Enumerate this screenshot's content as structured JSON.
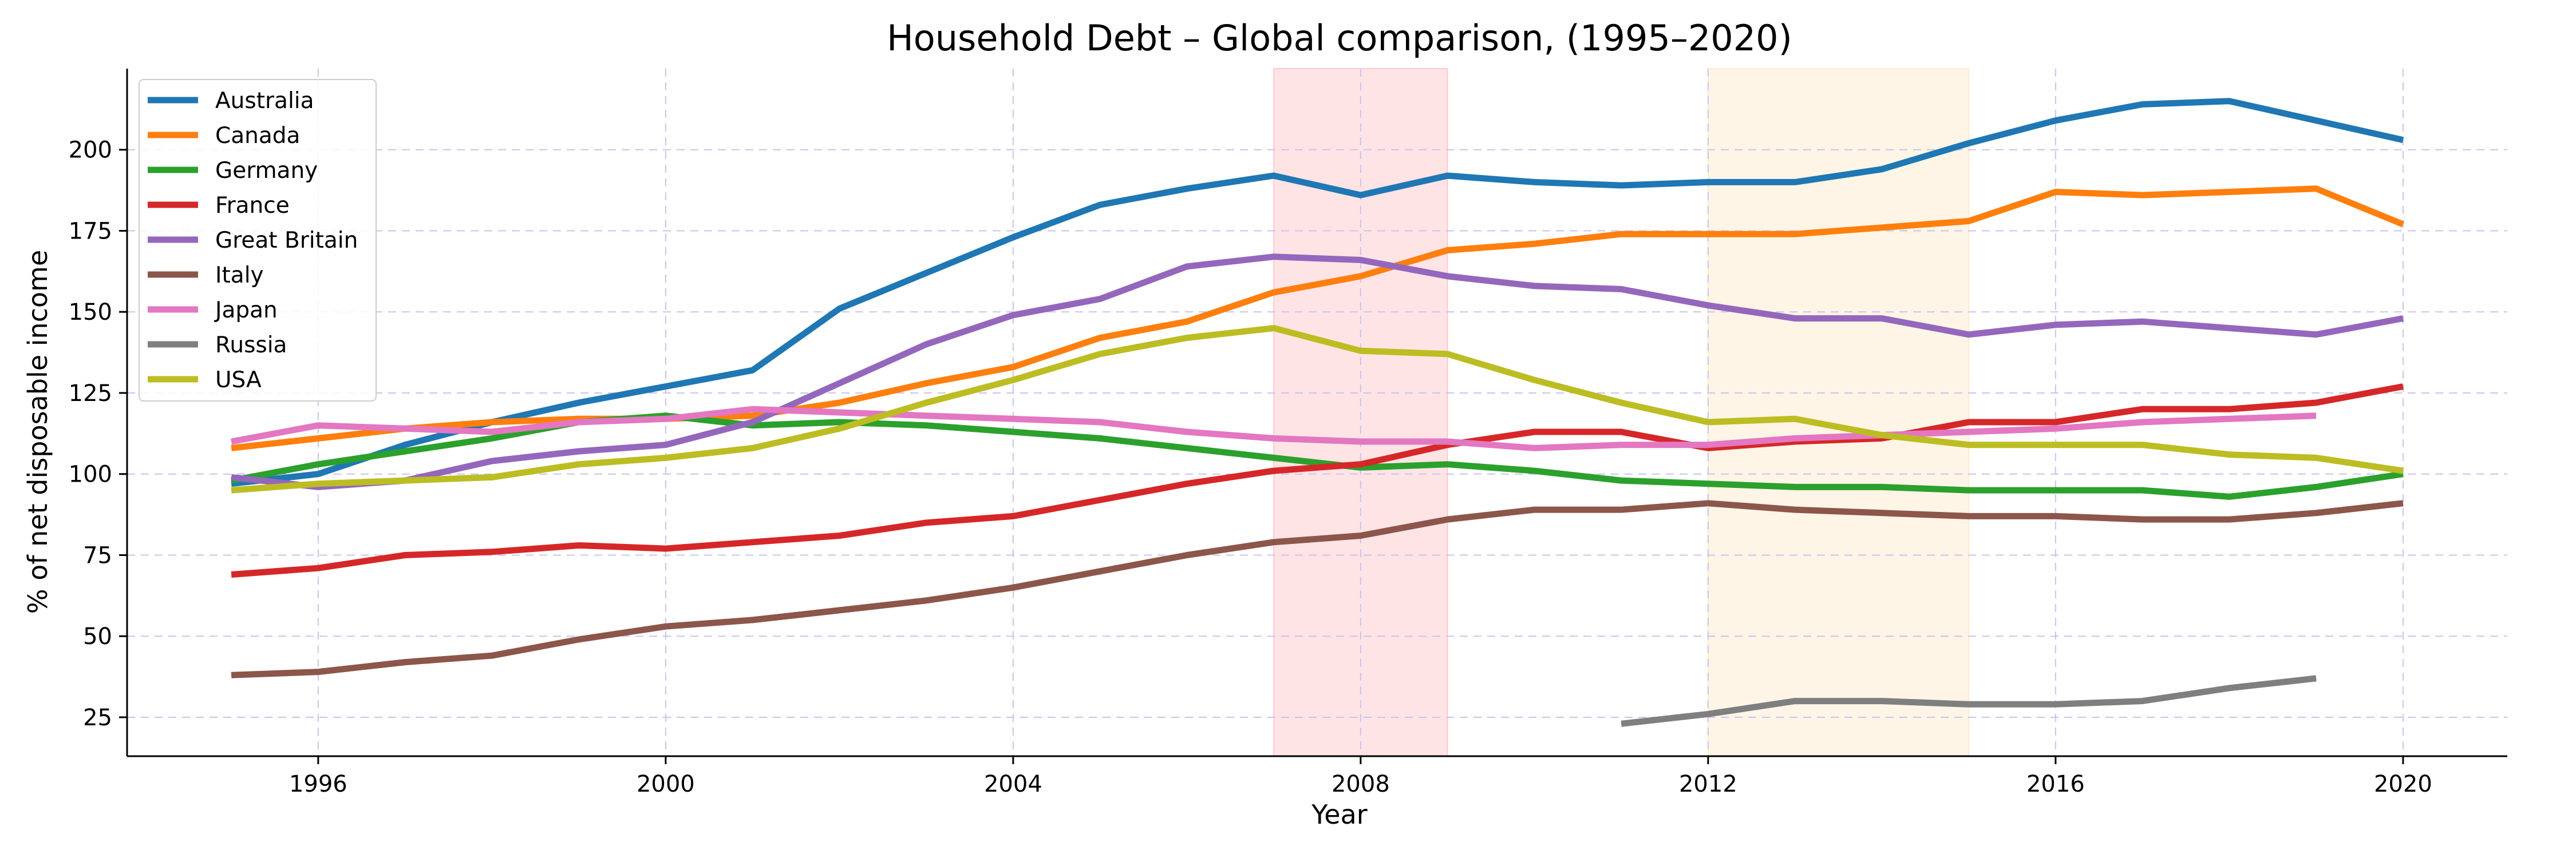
{
  "chart_data": {
    "type": "line",
    "title": "Household Debt – Global comparison, (1995–2020)",
    "xlabel": "Year",
    "ylabel": "% of net disposable income",
    "xlim": [
      1993.8,
      2021.2
    ],
    "ylim": [
      13,
      225
    ],
    "xticks": [
      1996,
      2000,
      2004,
      2008,
      2012,
      2016,
      2020
    ],
    "yticks": [
      25,
      50,
      75,
      100,
      125,
      150,
      175,
      200
    ],
    "grid": true,
    "legend_position": "top-left",
    "shaded_regions": [
      {
        "x_start": 2007,
        "x_end": 2009,
        "color": "#ffb3b8"
      },
      {
        "x_start": 2012,
        "x_end": 2015,
        "color": "#fde3b8"
      }
    ],
    "series": [
      {
        "name": "Australia",
        "color": "#1f77b4",
        "x": [
          1995,
          1996,
          1997,
          1998,
          1999,
          2000,
          2001,
          2002,
          2003,
          2004,
          2005,
          2006,
          2007,
          2008,
          2009,
          2010,
          2011,
          2012,
          2013,
          2014,
          2015,
          2016,
          2017,
          2018,
          2019,
          2020
        ],
        "y": [
          97,
          100,
          109,
          116,
          122,
          127,
          132,
          151,
          162,
          173,
          183,
          188,
          192,
          186,
          192,
          190,
          189,
          190,
          190,
          194,
          202,
          209,
          214,
          215,
          209,
          203
        ]
      },
      {
        "name": "Canada",
        "color": "#ff7f0e",
        "x": [
          1995,
          1996,
          1997,
          1998,
          1999,
          2000,
          2001,
          2002,
          2003,
          2004,
          2005,
          2006,
          2007,
          2008,
          2009,
          2010,
          2011,
          2012,
          2013,
          2014,
          2015,
          2016,
          2017,
          2018,
          2019,
          2020
        ],
        "y": [
          108,
          111,
          114,
          116,
          117,
          117,
          118,
          122,
          128,
          133,
          142,
          147,
          156,
          161,
          169,
          171,
          174,
          174,
          174,
          176,
          178,
          187,
          186,
          187,
          188,
          177
        ]
      },
      {
        "name": "Germany",
        "color": "#2ca02c",
        "x": [
          1995,
          1996,
          1997,
          1998,
          1999,
          2000,
          2001,
          2002,
          2003,
          2004,
          2005,
          2006,
          2007,
          2008,
          2009,
          2010,
          2011,
          2012,
          2013,
          2014,
          2015,
          2016,
          2017,
          2018,
          2019,
          2020
        ],
        "y": [
          98,
          103,
          107,
          111,
          116,
          118,
          115,
          116,
          115,
          113,
          111,
          108,
          105,
          102,
          103,
          101,
          98,
          97,
          96,
          96,
          95,
          95,
          95,
          93,
          96,
          100
        ]
      },
      {
        "name": "France",
        "color": "#d62728",
        "x": [
          1995,
          1996,
          1997,
          1998,
          1999,
          2000,
          2001,
          2002,
          2003,
          2004,
          2005,
          2006,
          2007,
          2008,
          2009,
          2010,
          2011,
          2012,
          2013,
          2014,
          2015,
          2016,
          2017,
          2018,
          2019,
          2020
        ],
        "y": [
          69,
          71,
          75,
          76,
          78,
          77,
          79,
          81,
          85,
          87,
          92,
          97,
          101,
          103,
          109,
          113,
          113,
          108,
          110,
          111,
          116,
          116,
          120,
          120,
          122,
          127
        ]
      },
      {
        "name": "Great Britain",
        "color": "#9467bd",
        "x": [
          1995,
          1996,
          1997,
          1998,
          1999,
          2000,
          2001,
          2002,
          2003,
          2004,
          2005,
          2006,
          2007,
          2008,
          2009,
          2010,
          2011,
          2012,
          2013,
          2014,
          2015,
          2016,
          2017,
          2018,
          2019,
          2020
        ],
        "y": [
          99,
          96,
          98,
          104,
          107,
          109,
          116,
          128,
          140,
          149,
          154,
          164,
          167,
          166,
          161,
          158,
          157,
          152,
          148,
          148,
          143,
          146,
          147,
          145,
          143,
          148
        ]
      },
      {
        "name": "Italy",
        "color": "#8c564b",
        "x": [
          1995,
          1996,
          1997,
          1998,
          1999,
          2000,
          2001,
          2002,
          2003,
          2004,
          2005,
          2006,
          2007,
          2008,
          2009,
          2010,
          2011,
          2012,
          2013,
          2014,
          2015,
          2016,
          2017,
          2018,
          2019,
          2020
        ],
        "y": [
          38,
          39,
          42,
          44,
          49,
          53,
          55,
          58,
          61,
          65,
          70,
          75,
          79,
          81,
          86,
          89,
          89,
          91,
          89,
          88,
          87,
          87,
          86,
          86,
          88,
          91
        ]
      },
      {
        "name": "Japan",
        "color": "#e377c2",
        "x": [
          1995,
          1996,
          1997,
          1998,
          1999,
          2000,
          2001,
          2002,
          2003,
          2004,
          2005,
          2006,
          2007,
          2008,
          2009,
          2010,
          2011,
          2012,
          2013,
          2014,
          2015,
          2016,
          2017,
          2018,
          2019
        ],
        "y": [
          110,
          115,
          114,
          113,
          116,
          117,
          120,
          119,
          118,
          117,
          116,
          113,
          111,
          110,
          110,
          108,
          109,
          109,
          111,
          112,
          113,
          114,
          116,
          117,
          118
        ]
      },
      {
        "name": "Russia",
        "color": "#7f7f7f",
        "x": [
          2011,
          2012,
          2013,
          2014,
          2015,
          2016,
          2017,
          2018,
          2019
        ],
        "y": [
          23,
          26,
          30,
          30,
          29,
          29,
          30,
          34,
          37
        ]
      },
      {
        "name": "USA",
        "color": "#bcbd22",
        "x": [
          1995,
          1996,
          1997,
          1998,
          1999,
          2000,
          2001,
          2002,
          2003,
          2004,
          2005,
          2006,
          2007,
          2008,
          2009,
          2010,
          2011,
          2012,
          2013,
          2014,
          2015,
          2016,
          2017,
          2018,
          2019,
          2020
        ],
        "y": [
          95,
          97,
          98,
          99,
          103,
          105,
          108,
          114,
          122,
          129,
          137,
          142,
          145,
          138,
          137,
          129,
          122,
          116,
          117,
          112,
          109,
          109,
          109,
          106,
          105,
          101
        ]
      }
    ]
  }
}
